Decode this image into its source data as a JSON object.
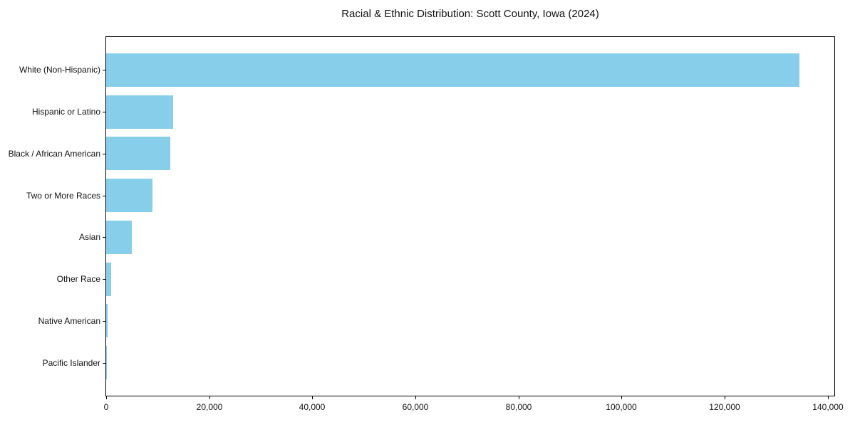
{
  "figure": {
    "title": "Racial & Ethnic Distribution: Scott County, Iowa (2024)"
  },
  "chart_data": {
    "type": "bar",
    "orientation": "horizontal",
    "title": "Racial & Ethnic Distribution: Scott County, Iowa (2024)",
    "categories": [
      "White (Non-Hispanic)",
      "Hispanic or Latino",
      "Black / African American",
      "Two or More Races",
      "Asian",
      "Other Race",
      "Native American",
      "Pacific Islander"
    ],
    "values": [
      134500,
      13000,
      12500,
      9000,
      5000,
      950,
      250,
      50
    ],
    "xlabel": "",
    "ylabel": "",
    "xlim": [
      0,
      141300
    ],
    "x_ticks": [
      0,
      20000,
      40000,
      60000,
      80000,
      100000,
      120000,
      140000
    ],
    "x_tick_labels": [
      "0",
      "20,000",
      "40,000",
      "60,000",
      "80,000",
      "100,000",
      "120,000",
      "140,000"
    ],
    "bar_color": "#87CEEB",
    "spine_color": "#000000",
    "text_color": "#111111",
    "grid": false,
    "legend": false
  }
}
